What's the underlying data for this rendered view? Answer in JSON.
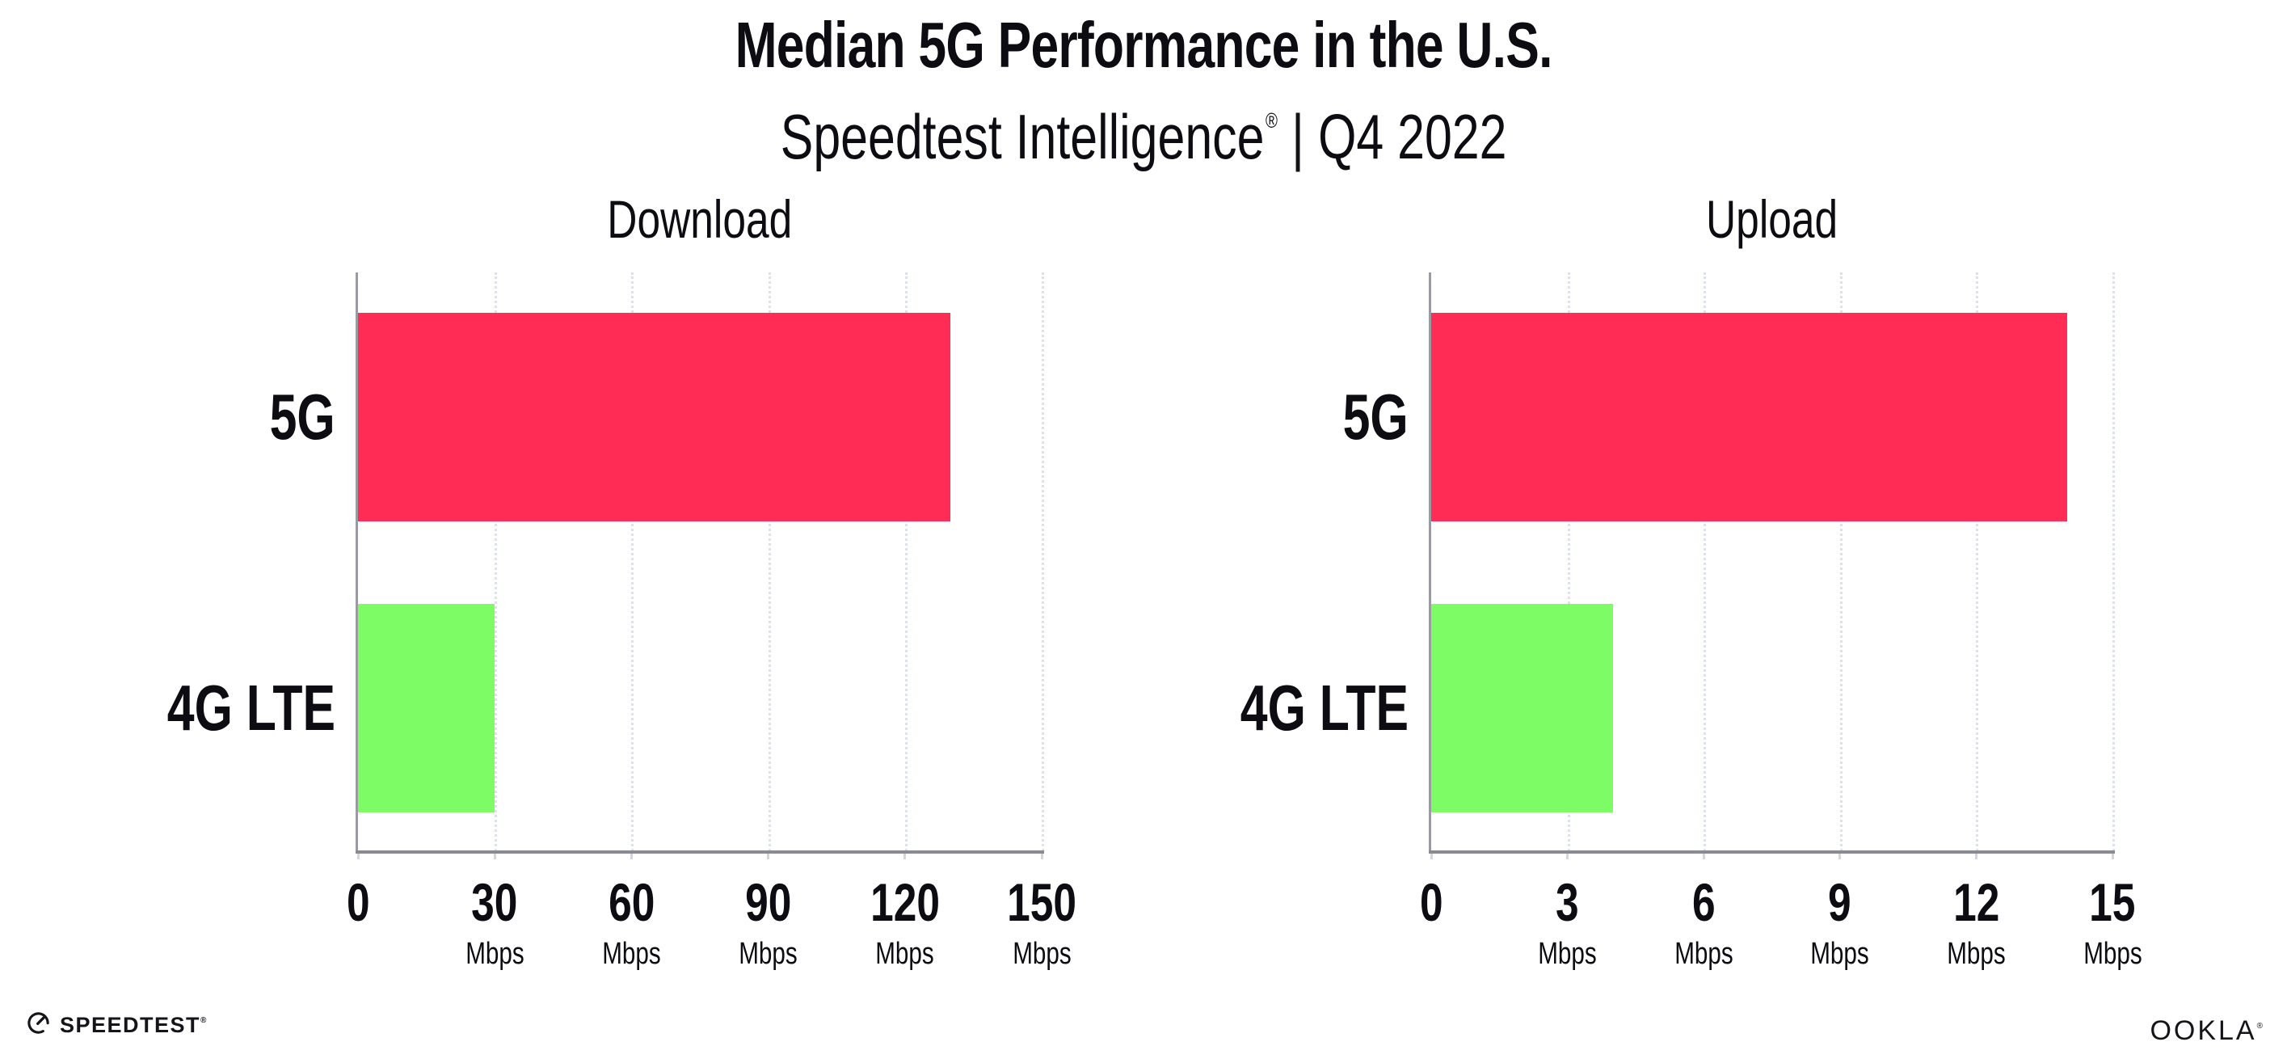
{
  "header": {
    "title": "Median 5G Performance in the U.S.",
    "subtitle_brand": "Speedtest Intelligence",
    "subtitle_reg": "®",
    "subtitle_sep": "|",
    "subtitle_period": "Q4 2022"
  },
  "colors": {
    "bar_5g": "#FF2D55",
    "bar_4g_lte": "#7DFC66",
    "gridline": "#DFE1E9",
    "x_axis": "#8A8A92",
    "y_axis": "#9A9AA2",
    "text": "#0C0C12"
  },
  "chart_data": [
    {
      "type": "bar",
      "orientation": "horizontal",
      "title": "Download",
      "unit": "Mbps",
      "categories": [
        "5G",
        "4G LTE"
      ],
      "values": [
        130,
        30
      ],
      "xlim": [
        0,
        150
      ],
      "xticks": [
        0,
        30,
        60,
        90,
        120,
        150
      ],
      "grid": "vertical-dotted",
      "legend": "none",
      "bar_colors": [
        "#FF2D55",
        "#7DFC66"
      ]
    },
    {
      "type": "bar",
      "orientation": "horizontal",
      "title": "Upload",
      "unit": "Mbps",
      "categories": [
        "5G",
        "4G LTE"
      ],
      "values": [
        14,
        4
      ],
      "xlim": [
        0,
        15
      ],
      "xticks": [
        0,
        3,
        6,
        9,
        12,
        15
      ],
      "grid": "vertical-dotted",
      "legend": "none",
      "bar_colors": [
        "#FF2D55",
        "#7DFC66"
      ]
    }
  ],
  "footer": {
    "speedtest_label": "SPEEDTEST",
    "speedtest_reg": "®",
    "ookla_label": "OOKLA",
    "ookla_reg": "®"
  }
}
